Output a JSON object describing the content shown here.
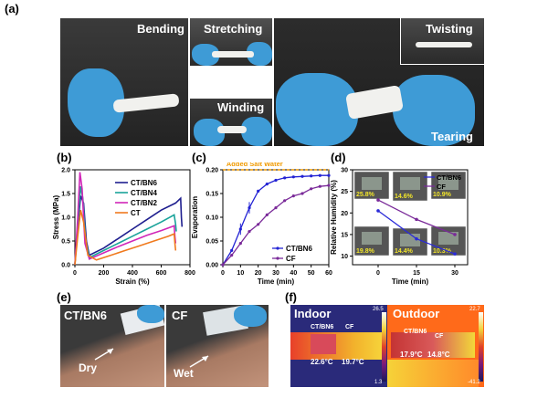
{
  "panels": {
    "a": {
      "label": "(a)",
      "captions": [
        "Bending",
        "Stretching",
        "Twisting",
        "Winding",
        "Tearing"
      ]
    },
    "b": {
      "label": "(b)"
    },
    "c": {
      "label": "(c)"
    },
    "d": {
      "label": "(d)"
    },
    "e": {
      "label": "(e)",
      "left_title": "CT/BN6",
      "right_title": "CF",
      "left_note": "Dry",
      "right_note": "Wet"
    },
    "f": {
      "label": "(f)",
      "indoor": "Indoor",
      "outdoor": "Outdoor",
      "indoor_ct": "CT/BN6",
      "indoor_cf": "CF",
      "outdoor_ct": "CT/BN6",
      "outdoor_cf": "CF",
      "indoor_temp_ct": "22.6°C",
      "indoor_temp_cf": "19.7°C",
      "outdoor_temp_ct": "17.9°C",
      "outdoor_temp_cf": "14.8°C",
      "scale1_max": "26.5",
      "scale1_min": "1.3",
      "scale2_max": "22.7",
      "scale2_min": "-41.2"
    }
  },
  "colors": {
    "ctbn6": "#1f1f8f",
    "ctbn4": "#1aa39a",
    "ctbn2": "#d126b8",
    "ct": "#f07a1e",
    "evap_ctbn6": "#2323d4",
    "evap_cf": "#7a2a99",
    "salt": "#f09a00",
    "hum_ctbn6": "#2a2ad8",
    "hum_cf": "#7a2a99"
  },
  "chart_data": [
    {
      "id": "b",
      "type": "line",
      "xlabel": "Strain (%)",
      "ylabel": "Stress (MPa)",
      "xlim": [
        0,
        800
      ],
      "ylim": [
        0,
        2.0
      ],
      "xticks": [
        0,
        200,
        400,
        600,
        800
      ],
      "yticks": [
        0.0,
        0.5,
        1.0,
        1.5,
        2.0
      ],
      "series": [
        {
          "name": "CT/BN6",
          "color_key": "ctbn6",
          "x": [
            0,
            20,
            40,
            60,
            80,
            100,
            200,
            300,
            400,
            500,
            600,
            700,
            735,
            740,
            745
          ],
          "y": [
            0,
            0.8,
            1.45,
            1.3,
            0.5,
            0.2,
            0.35,
            0.55,
            0.75,
            0.95,
            1.15,
            1.3,
            1.4,
            1.0,
            0.8
          ]
        },
        {
          "name": "CT/BN4",
          "color_key": "ctbn4",
          "x": [
            0,
            20,
            40,
            55,
            75,
            100,
            200,
            300,
            400,
            500,
            600,
            690,
            700,
            705
          ],
          "y": [
            0,
            0.9,
            1.65,
            1.4,
            0.5,
            0.15,
            0.3,
            0.45,
            0.6,
            0.75,
            0.9,
            1.05,
            0.85,
            0.7
          ]
        },
        {
          "name": "CT/BN2",
          "color_key": "ctbn2",
          "x": [
            0,
            20,
            35,
            50,
            70,
            100,
            200,
            300,
            400,
            500,
            600,
            690,
            695,
            700
          ],
          "y": [
            0,
            1.0,
            1.95,
            1.6,
            0.45,
            0.12,
            0.25,
            0.38,
            0.5,
            0.62,
            0.72,
            0.82,
            0.6,
            0.45
          ]
        },
        {
          "name": "CT",
          "color_key": "ct",
          "x": [
            0,
            20,
            40,
            60,
            90,
            150,
            250,
            350,
            450,
            550,
            650,
            690,
            695,
            700
          ],
          "y": [
            0,
            0.6,
            1.15,
            0.9,
            0.2,
            0.1,
            0.2,
            0.3,
            0.4,
            0.5,
            0.6,
            0.65,
            0.45,
            0.3
          ]
        }
      ],
      "legend": "top-right"
    },
    {
      "id": "c",
      "type": "line",
      "xlabel": "Time (min)",
      "ylabel": "Evaporation",
      "xlim": [
        0,
        60
      ],
      "ylim": [
        0,
        0.2
      ],
      "xticks": [
        0,
        10,
        20,
        30,
        40,
        50,
        60
      ],
      "yticks": [
        0.0,
        0.05,
        0.1,
        0.15,
        0.2
      ],
      "annotation": "Added Salt Water",
      "annotation_y": 0.2,
      "series": [
        {
          "name": "CT/BN6",
          "color_key": "evap_ctbn6",
          "x": [
            0,
            5,
            10,
            15,
            20,
            25,
            30,
            35,
            40,
            45,
            50,
            55,
            60
          ],
          "y": [
            0,
            0.03,
            0.075,
            0.12,
            0.155,
            0.17,
            0.178,
            0.183,
            0.185,
            0.186,
            0.187,
            0.188,
            0.188
          ]
        },
        {
          "name": "CF",
          "color_key": "evap_cf",
          "x": [
            0,
            5,
            10,
            15,
            20,
            25,
            30,
            35,
            40,
            45,
            50,
            55,
            60
          ],
          "y": [
            0,
            0.02,
            0.045,
            0.07,
            0.085,
            0.105,
            0.12,
            0.135,
            0.145,
            0.15,
            0.16,
            0.165,
            0.167
          ]
        }
      ],
      "legend": "bottom-right"
    },
    {
      "id": "d",
      "type": "line",
      "xlabel": "Time (min)",
      "ylabel": "Relative Humidity (%)",
      "xlim": [
        -10,
        35
      ],
      "ylim": [
        8,
        30
      ],
      "xticks": [
        0,
        15,
        30
      ],
      "yticks": [
        10,
        15,
        20,
        25,
        30
      ],
      "series": [
        {
          "name": "CT/BN6",
          "color_key": "hum_ctbn6",
          "x": [
            0,
            15,
            30
          ],
          "y": [
            20.5,
            14.0,
            10.5
          ]
        },
        {
          "name": "CF",
          "color_key": "hum_cf",
          "x": [
            0,
            15,
            30
          ],
          "y": [
            23.0,
            18.5,
            15.0
          ]
        }
      ],
      "photo_labels": [
        "25.8%",
        "14.6%",
        "10.9%",
        "19.8%",
        "14.4%",
        "10.3%"
      ],
      "legend": "top-right"
    }
  ]
}
